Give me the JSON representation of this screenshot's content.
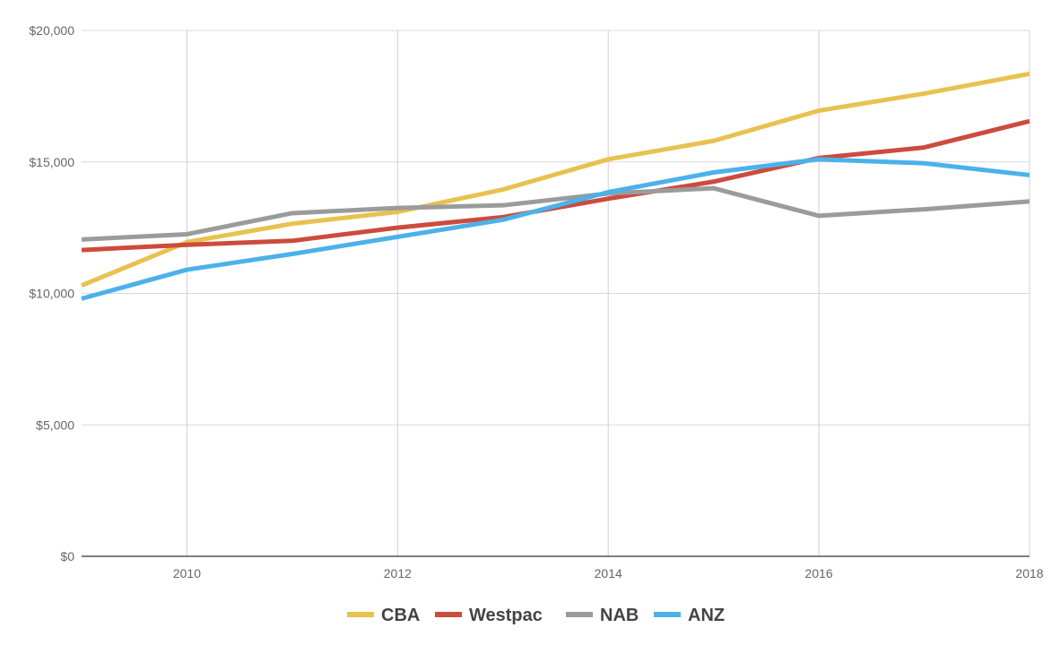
{
  "chart_data": {
    "type": "line",
    "title": "",
    "xlabel": "",
    "ylabel": "",
    "x": [
      2009,
      2010,
      2011,
      2012,
      2013,
      2014,
      2015,
      2016,
      2017,
      2018
    ],
    "xlim": [
      2009,
      2018
    ],
    "ylim": [
      0,
      20000
    ],
    "x_ticks": [
      "2010",
      "2012",
      "2014",
      "2016",
      "2018"
    ],
    "y_ticks": [
      "$0",
      "$5,000",
      "$10,000",
      "$15,000",
      "$20,000"
    ],
    "grid": true,
    "legend_position": "bottom",
    "series": [
      {
        "name": "CBA",
        "color": "#E8C14F",
        "values": [
          10300,
          11950,
          12650,
          13100,
          13950,
          15100,
          15800,
          16950,
          17600,
          18350
        ]
      },
      {
        "name": "Westpac",
        "color": "#CC4B3D",
        "values": [
          11650,
          11850,
          12000,
          12500,
          12900,
          13600,
          14250,
          15150,
          15550,
          16550
        ]
      },
      {
        "name": "NAB",
        "color": "#9B9B9B",
        "values": [
          12050,
          12250,
          13050,
          13250,
          13350,
          13800,
          14000,
          12950,
          13200,
          13500
        ]
      },
      {
        "name": "ANZ",
        "color": "#4BB1EA",
        "values": [
          9800,
          10900,
          11500,
          12150,
          12800,
          13850,
          14600,
          15100,
          14950,
          14500
        ]
      }
    ]
  }
}
